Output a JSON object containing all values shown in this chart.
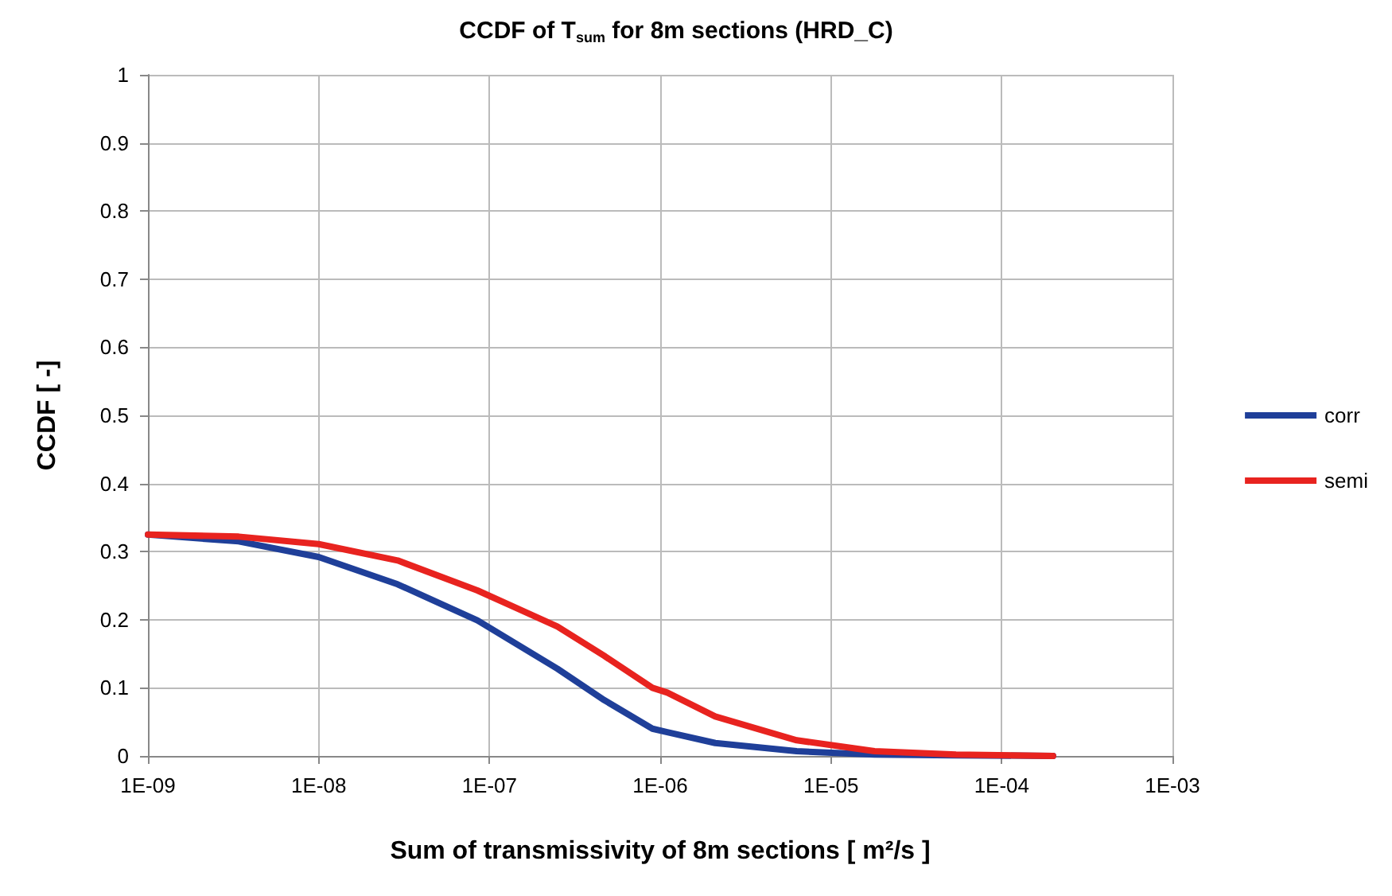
{
  "chart_data": {
    "type": "line",
    "title": "CCDF of T$_{sum}$ for 8m sections (HRD_C)",
    "xlabel": "Sum of transmissivity of 8m sections [ m²/s ]",
    "ylabel": "CCDF [ -]",
    "log": "x",
    "grid": true,
    "legend": "right",
    "marker": "none",
    "line_style": "solid",
    "xlim": [
      1e-09,
      0.001
    ],
    "xticks": [
      {
        "value": 1e-09,
        "label": "1E-09"
      },
      {
        "value": 1e-08,
        "label": "1E-08"
      },
      {
        "value": 1e-07,
        "label": "1E-07"
      },
      {
        "value": 1e-06,
        "label": "1E-06"
      },
      {
        "value": 1e-05,
        "label": "1E-05"
      },
      {
        "value": 0.0001,
        "label": "1E-04"
      },
      {
        "value": 0.001,
        "label": "1E-03"
      }
    ],
    "ylim": [
      0,
      1
    ],
    "yticks": [
      0,
      0.1,
      0.2,
      0.3,
      0.4,
      0.5,
      0.6,
      0.7,
      0.8,
      0.9,
      1
    ],
    "series": [
      {
        "name": "corr",
        "color": "#1f3f99",
        "x": [
          1e-09,
          3.4e-09,
          1e-08,
          2.9e-08,
          8.5e-08,
          2.5e-07,
          4.7e-07,
          9e-07,
          1.1e-06,
          2.1e-06,
          6.3e-06,
          1.8e-05,
          5.4e-05,
          0.0002
        ],
        "values": [
          0.325,
          0.315,
          0.292,
          0.252,
          0.199,
          0.128,
          0.082,
          0.04,
          0.035,
          0.019,
          0.007,
          0.002,
          0.001,
          0
        ]
      },
      {
        "name": "semi",
        "color": "#e8231f",
        "x": [
          1e-09,
          3.4e-09,
          1e-08,
          2.9e-08,
          8.5e-08,
          2.5e-07,
          4.7e-07,
          9e-07,
          1.1e-06,
          2.1e-06,
          6.3e-06,
          1.8e-05,
          5.4e-05,
          0.0002
        ],
        "values": [
          0.325,
          0.322,
          0.311,
          0.287,
          0.243,
          0.19,
          0.147,
          0.1,
          0.093,
          0.058,
          0.023,
          0.007,
          0.002,
          0
        ]
      }
    ]
  }
}
